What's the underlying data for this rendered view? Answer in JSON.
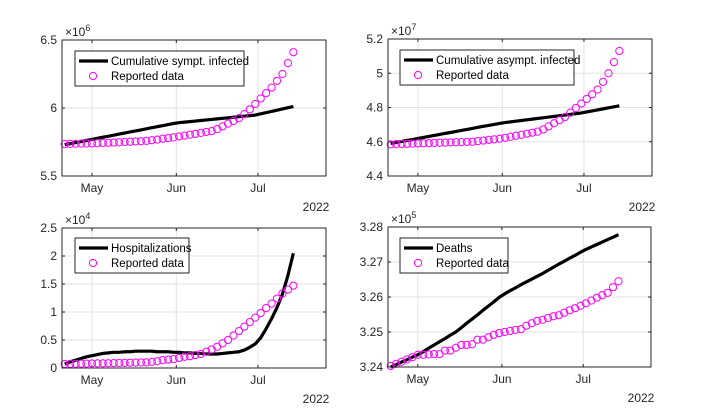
{
  "chart_data": [
    {
      "type": "line",
      "exponent_label": "×10",
      "exponent_power": "6",
      "year_label": "2022",
      "xlim": [
        "2022-04-20",
        "2022-07-26"
      ],
      "ylim": [
        5.5,
        6.5
      ],
      "yticks": [
        5.5,
        6,
        6.5
      ],
      "ytick_labels": [
        "5.5",
        "6",
        "6.5"
      ],
      "xticks": [
        "2022-05-01",
        "2022-06-01",
        "2022-07-01"
      ],
      "xtick_labels": [
        "May",
        "Jun",
        "Jul"
      ],
      "grid": true,
      "legend": "top-left",
      "series": [
        {
          "name": "Cumulative sympt. infected",
          "style": "line",
          "color": "#000000",
          "values": [
            5.73,
            5.738,
            5.746,
            5.753,
            5.761,
            5.769,
            5.777,
            5.785,
            5.792,
            5.8,
            5.808,
            5.816,
            5.824,
            5.831,
            5.839,
            5.847,
            5.855,
            5.863,
            5.87,
            5.878,
            5.886,
            5.892,
            5.896,
            5.9,
            5.904,
            5.908,
            5.912,
            5.916,
            5.92,
            5.924,
            5.928,
            5.932,
            5.936,
            5.94,
            5.944,
            5.948,
            5.957,
            5.966,
            5.975,
            5.984,
            5.993,
            6.002,
            6.011
          ]
        },
        {
          "name": "Reported data",
          "style": "marker",
          "color": "#ff00ff",
          "values": [
            5.735,
            5.736,
            5.737,
            5.738,
            5.739,
            5.74,
            5.741,
            5.743,
            5.744,
            5.746,
            5.748,
            5.75,
            5.752,
            5.754,
            5.756,
            5.758,
            5.763,
            5.768,
            5.774,
            5.779,
            5.784,
            5.791,
            5.797,
            5.804,
            5.81,
            5.817,
            5.824,
            5.83,
            5.845,
            5.865,
            5.885,
            5.905,
            5.925,
            5.955,
            5.99,
            6.03,
            6.07,
            6.11,
            6.15,
            6.2,
            6.25,
            6.33,
            6.41
          ]
        }
      ]
    },
    {
      "type": "line",
      "exponent_label": "×10",
      "exponent_power": "7",
      "year_label": "2022",
      "xlim": [
        "2022-04-20",
        "2022-07-26"
      ],
      "ylim": [
        4.4,
        5.2
      ],
      "yticks": [
        4.4,
        4.6,
        4.8,
        5,
        5.2
      ],
      "ytick_labels": [
        "4.4",
        "4.6",
        "4.8",
        "5",
        "5.2"
      ],
      "xticks": [
        "2022-05-01",
        "2022-06-01",
        "2022-07-01"
      ],
      "xtick_labels": [
        "May",
        "Jun",
        "Jul"
      ],
      "grid": true,
      "legend": "top-left",
      "series": [
        {
          "name": "Cumulative asympt. infected",
          "style": "line",
          "color": "#000000",
          "values": [
            4.59,
            4.596,
            4.602,
            4.608,
            4.613,
            4.619,
            4.625,
            4.631,
            4.637,
            4.643,
            4.649,
            4.654,
            4.66,
            4.666,
            4.672,
            4.678,
            4.684,
            4.69,
            4.695,
            4.701,
            4.707,
            4.712,
            4.716,
            4.72,
            4.724,
            4.728,
            4.732,
            4.736,
            4.74,
            4.744,
            4.748,
            4.752,
            4.756,
            4.76,
            4.764,
            4.768,
            4.774,
            4.78,
            4.786,
            4.792,
            4.798,
            4.804,
            4.81
          ]
        },
        {
          "name": "Reported data",
          "style": "marker",
          "color": "#ff00ff",
          "values": [
            4.585,
            4.586,
            4.587,
            4.588,
            4.589,
            4.59,
            4.591,
            4.592,
            4.593,
            4.594,
            4.595,
            4.596,
            4.597,
            4.598,
            4.599,
            4.6,
            4.604,
            4.607,
            4.611,
            4.614,
            4.618,
            4.623,
            4.629,
            4.635,
            4.641,
            4.647,
            4.653,
            4.659,
            4.672,
            4.69,
            4.708,
            4.726,
            4.744,
            4.77,
            4.797,
            4.823,
            4.85,
            4.877,
            4.905,
            4.95,
            5.0,
            5.065,
            5.13
          ]
        }
      ]
    },
    {
      "type": "line",
      "exponent_label": "×10",
      "exponent_power": "4",
      "year_label": "2022",
      "xlim": [
        "2022-04-20",
        "2022-07-26"
      ],
      "ylim": [
        0,
        2.5
      ],
      "yticks": [
        0,
        0.5,
        1,
        1.5,
        2,
        2.5
      ],
      "ytick_labels": [
        "0",
        "0.5",
        "1",
        "1.5",
        "2",
        "2.5"
      ],
      "xticks": [
        "2022-05-01",
        "2022-06-01",
        "2022-07-01"
      ],
      "xtick_labels": [
        "May",
        "Jun",
        "Jul"
      ],
      "grid": true,
      "legend": "top-left",
      "series": [
        {
          "name": "Hospitalizations",
          "style": "line",
          "color": "#000000",
          "values": [
            0.07,
            0.11,
            0.14,
            0.17,
            0.2,
            0.22,
            0.24,
            0.26,
            0.27,
            0.28,
            0.28,
            0.29,
            0.29,
            0.3,
            0.3,
            0.3,
            0.3,
            0.29,
            0.29,
            0.29,
            0.28,
            0.28,
            0.27,
            0.27,
            0.26,
            0.26,
            0.25,
            0.25,
            0.25,
            0.26,
            0.27,
            0.28,
            0.29,
            0.32,
            0.37,
            0.43,
            0.54,
            0.7,
            0.88,
            1.08,
            1.32,
            1.65,
            2.05
          ]
        },
        {
          "name": "Reported data",
          "style": "marker",
          "color": "#ff00ff",
          "values": [
            0.07,
            0.072,
            0.074,
            0.076,
            0.078,
            0.08,
            0.082,
            0.084,
            0.086,
            0.088,
            0.09,
            0.092,
            0.094,
            0.096,
            0.098,
            0.1,
            0.11,
            0.12,
            0.14,
            0.15,
            0.16,
            0.18,
            0.2,
            0.21,
            0.23,
            0.25,
            0.29,
            0.33,
            0.38,
            0.44,
            0.5,
            0.58,
            0.66,
            0.74,
            0.82,
            0.9,
            0.98,
            1.07,
            1.15,
            1.24,
            1.33,
            1.4,
            1.47
          ]
        }
      ]
    },
    {
      "type": "line",
      "exponent_label": "×10",
      "exponent_power": "5",
      "year_label": "2022",
      "xlim": [
        "2022-04-20",
        "2022-07-26"
      ],
      "ylim": [
        3.24,
        3.28
      ],
      "yticks": [
        3.24,
        3.25,
        3.26,
        3.27,
        3.28
      ],
      "ytick_labels": [
        "3.24",
        "3.25",
        "3.26",
        "3.27",
        "3.28"
      ],
      "xticks": [
        "2022-05-01",
        "2022-06-01",
        "2022-07-01"
      ],
      "xtick_labels": [
        "May",
        "Jun",
        "Jul"
      ],
      "grid": true,
      "legend": "top-left",
      "series": [
        {
          "name": "Deaths",
          "style": "line",
          "color": "#000000",
          "values": [
            3.24,
            3.2407,
            3.2414,
            3.2421,
            3.2428,
            3.2435,
            3.2444,
            3.2454,
            3.2463,
            3.2472,
            3.2481,
            3.2491,
            3.25,
            3.2512,
            3.2525,
            3.2537,
            3.2549,
            3.2562,
            3.2574,
            3.2586,
            3.2599,
            3.2609,
            3.2618,
            3.2626,
            3.2635,
            3.2643,
            3.2651,
            3.2659,
            3.2667,
            3.2676,
            3.2685,
            3.2694,
            3.2702,
            3.2711,
            3.2719,
            3.2728,
            3.2736,
            3.2743,
            3.275,
            3.2757,
            3.2764,
            3.2771,
            3.2778
          ]
        },
        {
          "name": "Reported data",
          "style": "marker",
          "color": "#ff00ff",
          "values": [
            3.2403,
            3.2409,
            3.2415,
            3.2422,
            3.2428,
            3.2435,
            3.2435,
            3.2436,
            3.2437,
            3.2437,
            3.2447,
            3.2447,
            3.2455,
            3.2463,
            3.2463,
            3.2465,
            3.2478,
            3.2478,
            3.2485,
            3.2492,
            3.2497,
            3.25,
            3.2503,
            3.2506,
            3.2508,
            3.2518,
            3.2525,
            3.2532,
            3.2535,
            3.254,
            3.2545,
            3.2548,
            3.2555,
            3.2562,
            3.2568,
            3.2575,
            3.2582,
            3.259,
            3.2598,
            3.2605,
            3.2612,
            3.2628,
            3.2645
          ]
        }
      ]
    }
  ],
  "dates": [
    "2022-04-21",
    "2022-04-23",
    "2022-04-25",
    "2022-04-27",
    "2022-04-29",
    "2022-05-01",
    "2022-05-03",
    "2022-05-05",
    "2022-05-07",
    "2022-05-09",
    "2022-05-11",
    "2022-05-13",
    "2022-05-15",
    "2022-05-17",
    "2022-05-19",
    "2022-05-21",
    "2022-05-23",
    "2022-05-25",
    "2022-05-27",
    "2022-05-29",
    "2022-05-31",
    "2022-06-02",
    "2022-06-04",
    "2022-06-06",
    "2022-06-08",
    "2022-06-10",
    "2022-06-12",
    "2022-06-14",
    "2022-06-16",
    "2022-06-18",
    "2022-06-20",
    "2022-06-22",
    "2022-06-24",
    "2022-06-26",
    "2022-06-28",
    "2022-06-30",
    "2022-07-02",
    "2022-07-04",
    "2022-07-06",
    "2022-07-08",
    "2022-07-10",
    "2022-07-12",
    "2022-07-14"
  ]
}
